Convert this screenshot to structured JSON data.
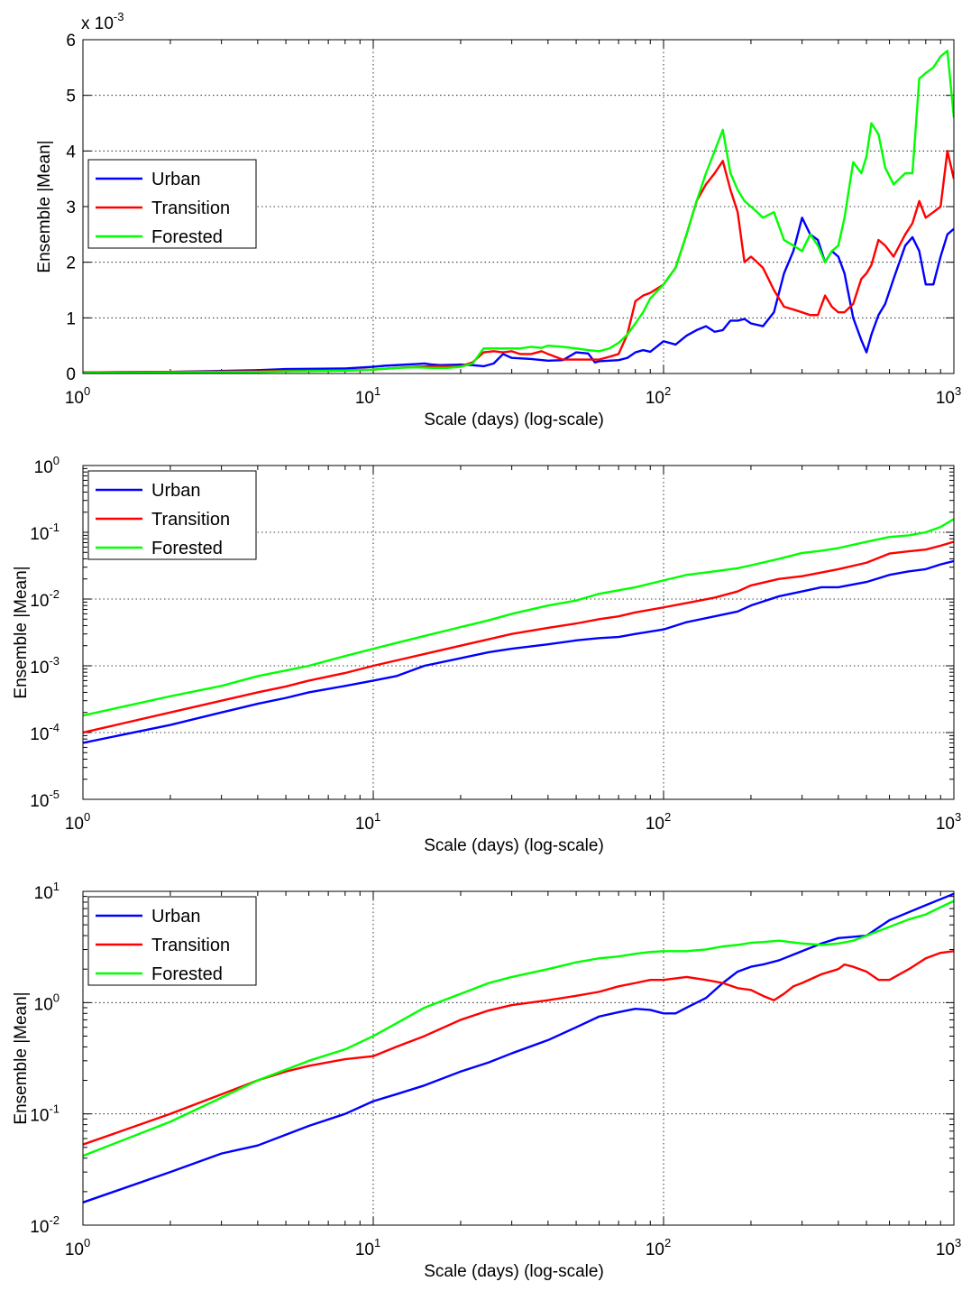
{
  "colors": {
    "urban": "#0000ff",
    "transition": "#ff0000",
    "forested": "#00ff00"
  },
  "chart_data": [
    {
      "type": "line",
      "xscale": "log",
      "yscale": "linear",
      "xlabel": "Scale (days) (log-scale)",
      "ylabel": "Ensemble |Mean|",
      "xlim": [
        1,
        1000
      ],
      "ylim": [
        0,
        0.006
      ],
      "y_multiplier_label": "x 10",
      "y_multiplier_exp": "-3",
      "yticks": [
        0,
        0.001,
        0.002,
        0.003,
        0.004,
        0.005,
        0.006
      ],
      "yticklabels": [
        "0",
        "1",
        "2",
        "3",
        "4",
        "5",
        "6"
      ],
      "xticks": [
        1,
        10,
        100,
        1000
      ],
      "xticklabels": [
        {
          "base": "10",
          "exp": "0"
        },
        {
          "base": "10",
          "exp": "1"
        },
        {
          "base": "10",
          "exp": "2"
        },
        {
          "base": "10",
          "exp": "3"
        }
      ],
      "grid": true,
      "legend_position": "upper-left",
      "series": [
        {
          "name": "Urban",
          "color_key": "urban",
          "x": [
            1,
            2,
            4,
            5,
            8,
            10,
            11,
            12,
            13,
            14,
            15,
            16,
            17,
            20,
            22,
            24,
            26,
            28,
            30,
            35,
            40,
            45,
            50,
            55,
            58,
            60,
            70,
            75,
            80,
            85,
            90,
            100,
            110,
            120,
            130,
            140,
            150,
            160,
            170,
            180,
            190,
            200,
            220,
            240,
            260,
            280,
            300,
            320,
            340,
            360,
            380,
            400,
            420,
            450,
            480,
            500,
            520,
            550,
            580,
            620,
            680,
            720,
            760,
            800,
            850,
            900,
            950,
            1000
          ],
          "y": [
            2e-05,
            3e-05,
            6e-05,
            8e-05,
            9e-05,
            0.00012,
            0.00014,
            0.00015,
            0.00016,
            0.00017,
            0.00018,
            0.00016,
            0.00015,
            0.00016,
            0.00015,
            0.00013,
            0.00018,
            0.00035,
            0.00028,
            0.00026,
            0.00023,
            0.00024,
            0.00038,
            0.00036,
            0.0002,
            0.00022,
            0.00024,
            0.00028,
            0.00038,
            0.00042,
            0.00039,
            0.00058,
            0.00052,
            0.00068,
            0.00078,
            0.00085,
            0.00075,
            0.00078,
            0.00095,
            0.00095,
            0.00098,
            0.0009,
            0.00085,
            0.0011,
            0.0018,
            0.0022,
            0.0028,
            0.0025,
            0.0024,
            0.002,
            0.0022,
            0.0021,
            0.0018,
            0.001,
            0.0006,
            0.00038,
            0.0007,
            0.00105,
            0.00125,
            0.0017,
            0.0023,
            0.00245,
            0.0022,
            0.0016,
            0.0016,
            0.0021,
            0.0025,
            0.0026
          ]
        },
        {
          "name": "Transition",
          "color_key": "transition",
          "x": [
            1,
            2,
            4,
            5,
            8,
            10,
            12,
            14,
            16,
            18,
            20,
            22,
            24,
            26,
            28,
            30,
            32,
            35,
            38,
            40,
            45,
            50,
            55,
            60,
            65,
            70,
            75,
            80,
            85,
            90,
            100,
            110,
            120,
            130,
            140,
            150,
            160,
            170,
            180,
            190,
            200,
            210,
            220,
            240,
            260,
            280,
            300,
            320,
            340,
            360,
            380,
            400,
            420,
            450,
            480,
            500,
            520,
            550,
            580,
            620,
            680,
            720,
            760,
            800,
            850,
            900,
            950,
            1000
          ],
          "y": [
            2e-05,
            3e-05,
            4e-05,
            5e-05,
            6e-05,
            7e-05,
            0.0001,
            0.00012,
            0.00013,
            0.00013,
            0.00013,
            0.0002,
            0.00038,
            0.0004,
            0.00038,
            0.0004,
            0.00035,
            0.00035,
            0.0004,
            0.00035,
            0.00025,
            0.00025,
            0.00025,
            0.00025,
            0.0003,
            0.00035,
            0.0007,
            0.0013,
            0.0014,
            0.00145,
            0.0016,
            0.0019,
            0.0025,
            0.0031,
            0.0034,
            0.0036,
            0.00382,
            0.0033,
            0.0029,
            0.002,
            0.0021,
            0.002,
            0.0019,
            0.0015,
            0.0012,
            0.00115,
            0.0011,
            0.00105,
            0.00105,
            0.0014,
            0.0012,
            0.0011,
            0.0011,
            0.00125,
            0.0017,
            0.0018,
            0.00195,
            0.0024,
            0.0023,
            0.0021,
            0.0025,
            0.0027,
            0.0031,
            0.0028,
            0.0029,
            0.003,
            0.004,
            0.0035
          ]
        },
        {
          "name": "Forested",
          "color_key": "forested",
          "x": [
            1,
            2,
            4,
            5,
            8,
            10,
            12,
            14,
            16,
            18,
            20,
            22,
            24,
            26,
            28,
            30,
            32,
            35,
            38,
            40,
            45,
            50,
            55,
            60,
            65,
            70,
            75,
            80,
            85,
            90,
            100,
            110,
            120,
            130,
            140,
            150,
            160,
            170,
            180,
            190,
            200,
            210,
            220,
            240,
            260,
            280,
            300,
            320,
            340,
            360,
            380,
            400,
            420,
            450,
            480,
            500,
            520,
            550,
            580,
            620,
            680,
            720,
            760,
            800,
            850,
            900,
            950,
            1000
          ],
          "y": [
            1e-05,
            2e-05,
            3e-05,
            4e-05,
            5e-05,
            7e-05,
            0.0001,
            0.00011,
            0.0001,
            0.0001,
            0.00012,
            0.00018,
            0.00045,
            0.00045,
            0.00045,
            0.00045,
            0.00045,
            0.00048,
            0.00046,
            0.0005,
            0.00048,
            0.00045,
            0.00042,
            0.0004,
            0.00045,
            0.00055,
            0.0007,
            0.0009,
            0.0011,
            0.00135,
            0.0016,
            0.0019,
            0.0025,
            0.0031,
            0.0036,
            0.004,
            0.00438,
            0.0036,
            0.0033,
            0.0031,
            0.003,
            0.0029,
            0.0028,
            0.0029,
            0.0024,
            0.0023,
            0.0022,
            0.0025,
            0.0023,
            0.002,
            0.0022,
            0.0023,
            0.0028,
            0.0038,
            0.0036,
            0.0039,
            0.0045,
            0.0043,
            0.0037,
            0.0034,
            0.0036,
            0.0036,
            0.0053,
            0.0054,
            0.0055,
            0.0057,
            0.0058,
            0.0046
          ]
        }
      ]
    },
    {
      "type": "line",
      "xscale": "log",
      "yscale": "log",
      "xlabel": "Scale (days) (log-scale)",
      "ylabel": "Ensemble |Mean|",
      "xlim": [
        1,
        1000
      ],
      "ylim": [
        1e-05,
        1
      ],
      "yticks": [
        1e-05,
        0.0001,
        0.001,
        0.01,
        0.1,
        1
      ],
      "yticklabels": [
        {
          "base": "10",
          "exp": "-5"
        },
        {
          "base": "10",
          "exp": "-4"
        },
        {
          "base": "10",
          "exp": "-3"
        },
        {
          "base": "10",
          "exp": "-2"
        },
        {
          "base": "10",
          "exp": "-1"
        },
        {
          "base": "10",
          "exp": "0"
        }
      ],
      "xticks": [
        1,
        10,
        100,
        1000
      ],
      "xticklabels": [
        {
          "base": "10",
          "exp": "0"
        },
        {
          "base": "10",
          "exp": "1"
        },
        {
          "base": "10",
          "exp": "2"
        },
        {
          "base": "10",
          "exp": "3"
        }
      ],
      "grid": true,
      "legend_position": "upper-left",
      "series": [
        {
          "name": "Urban",
          "color_key": "urban",
          "x": [
            1,
            2,
            3,
            4,
            5,
            6,
            8,
            10,
            12,
            15,
            20,
            25,
            30,
            40,
            50,
            60,
            70,
            80,
            100,
            120,
            150,
            180,
            200,
            250,
            300,
            350,
            400,
            500,
            600,
            700,
            800,
            900,
            1000
          ],
          "y": [
            7e-05,
            0.00013,
            0.0002,
            0.00027,
            0.00033,
            0.0004,
            0.0005,
            0.0006,
            0.0007,
            0.001,
            0.0013,
            0.0016,
            0.0018,
            0.0021,
            0.0024,
            0.0026,
            0.0027,
            0.003,
            0.0035,
            0.0045,
            0.0055,
            0.0065,
            0.008,
            0.011,
            0.013,
            0.015,
            0.015,
            0.018,
            0.023,
            0.026,
            0.028,
            0.033,
            0.037
          ]
        },
        {
          "name": "Transition",
          "color_key": "transition",
          "x": [
            1,
            2,
            3,
            4,
            5,
            6,
            8,
            10,
            12,
            15,
            20,
            25,
            30,
            40,
            50,
            60,
            70,
            80,
            100,
            120,
            150,
            180,
            200,
            250,
            300,
            350,
            400,
            500,
            600,
            700,
            800,
            900,
            1000
          ],
          "y": [
            0.0001,
            0.0002,
            0.0003,
            0.0004,
            0.00049,
            0.0006,
            0.00078,
            0.001,
            0.0012,
            0.0015,
            0.002,
            0.0025,
            0.003,
            0.0037,
            0.0043,
            0.005,
            0.0055,
            0.0063,
            0.0075,
            0.0087,
            0.0105,
            0.013,
            0.016,
            0.02,
            0.022,
            0.025,
            0.028,
            0.035,
            0.048,
            0.052,
            0.055,
            0.063,
            0.072
          ]
        },
        {
          "name": "Forested",
          "color_key": "forested",
          "x": [
            1,
            2,
            3,
            4,
            5,
            6,
            8,
            10,
            12,
            15,
            20,
            25,
            30,
            40,
            50,
            60,
            70,
            80,
            100,
            120,
            150,
            180,
            200,
            250,
            300,
            350,
            400,
            500,
            600,
            700,
            800,
            900,
            1000
          ],
          "y": [
            0.00018,
            0.00035,
            0.0005,
            0.0007,
            0.00085,
            0.001,
            0.0014,
            0.0018,
            0.0022,
            0.0028,
            0.0038,
            0.0048,
            0.006,
            0.008,
            0.0095,
            0.012,
            0.0135,
            0.015,
            0.019,
            0.023,
            0.026,
            0.029,
            0.032,
            0.04,
            0.049,
            0.053,
            0.058,
            0.072,
            0.085,
            0.09,
            0.1,
            0.12,
            0.158
          ]
        }
      ]
    },
    {
      "type": "line",
      "xscale": "log",
      "yscale": "log",
      "xlabel": "Scale (days) (log-scale)",
      "ylabel": "Ensemble |Mean|",
      "xlim": [
        1,
        1000
      ],
      "ylim": [
        0.01,
        10
      ],
      "yticks": [
        0.01,
        0.1,
        1,
        10
      ],
      "yticklabels": [
        {
          "base": "10",
          "exp": "-2"
        },
        {
          "base": "10",
          "exp": "-1"
        },
        {
          "base": "10",
          "exp": "0"
        },
        {
          "base": "10",
          "exp": "1"
        }
      ],
      "xticks": [
        1,
        10,
        100,
        1000
      ],
      "xticklabels": [
        {
          "base": "10",
          "exp": "0"
        },
        {
          "base": "10",
          "exp": "1"
        },
        {
          "base": "10",
          "exp": "2"
        },
        {
          "base": "10",
          "exp": "3"
        }
      ],
      "grid": true,
      "legend_position": "upper-left",
      "series": [
        {
          "name": "Urban",
          "color_key": "urban",
          "x": [
            1,
            2,
            3,
            4,
            5,
            6,
            8,
            10,
            12,
            15,
            20,
            25,
            30,
            40,
            50,
            60,
            70,
            80,
            90,
            100,
            110,
            120,
            140,
            160,
            180,
            200,
            220,
            250,
            300,
            350,
            400,
            450,
            500,
            600,
            700,
            800,
            900,
            1000
          ],
          "y": [
            0.016,
            0.03,
            0.044,
            0.052,
            0.065,
            0.078,
            0.1,
            0.13,
            0.15,
            0.18,
            0.24,
            0.29,
            0.35,
            0.46,
            0.6,
            0.75,
            0.82,
            0.88,
            0.86,
            0.8,
            0.8,
            0.9,
            1.1,
            1.5,
            1.9,
            2.1,
            2.2,
            2.4,
            2.9,
            3.4,
            3.8,
            3.9,
            4.0,
            5.5,
            6.5,
            7.5,
            8.5,
            9.5
          ]
        },
        {
          "name": "Transition",
          "color_key": "transition",
          "x": [
            1,
            2,
            3,
            4,
            5,
            6,
            8,
            10,
            12,
            15,
            20,
            25,
            30,
            40,
            50,
            60,
            70,
            80,
            90,
            100,
            120,
            140,
            160,
            180,
            200,
            220,
            240,
            260,
            280,
            300,
            350,
            400,
            420,
            450,
            500,
            550,
            600,
            700,
            800,
            900,
            1000
          ],
          "y": [
            0.053,
            0.1,
            0.15,
            0.2,
            0.24,
            0.27,
            0.31,
            0.33,
            0.4,
            0.5,
            0.7,
            0.85,
            0.95,
            1.05,
            1.15,
            1.25,
            1.4,
            1.5,
            1.6,
            1.6,
            1.7,
            1.6,
            1.5,
            1.35,
            1.3,
            1.15,
            1.05,
            1.2,
            1.4,
            1.5,
            1.8,
            2.0,
            2.2,
            2.1,
            1.9,
            1.6,
            1.6,
            2.0,
            2.5,
            2.8,
            2.9
          ]
        },
        {
          "name": "Forested",
          "color_key": "forested",
          "x": [
            1,
            2,
            3,
            4,
            5,
            6,
            8,
            10,
            12,
            15,
            20,
            25,
            30,
            40,
            50,
            60,
            70,
            80,
            90,
            100,
            120,
            140,
            160,
            180,
            200,
            220,
            250,
            300,
            350,
            400,
            450,
            500,
            600,
            700,
            800,
            900,
            1000
          ],
          "y": [
            0.042,
            0.085,
            0.14,
            0.2,
            0.25,
            0.3,
            0.38,
            0.5,
            0.65,
            0.9,
            1.2,
            1.5,
            1.7,
            2.0,
            2.3,
            2.5,
            2.6,
            2.75,
            2.85,
            2.9,
            2.9,
            3.0,
            3.2,
            3.3,
            3.45,
            3.5,
            3.6,
            3.4,
            3.3,
            3.4,
            3.6,
            4.0,
            4.8,
            5.6,
            6.2,
            7.2,
            8.2
          ]
        }
      ]
    }
  ]
}
